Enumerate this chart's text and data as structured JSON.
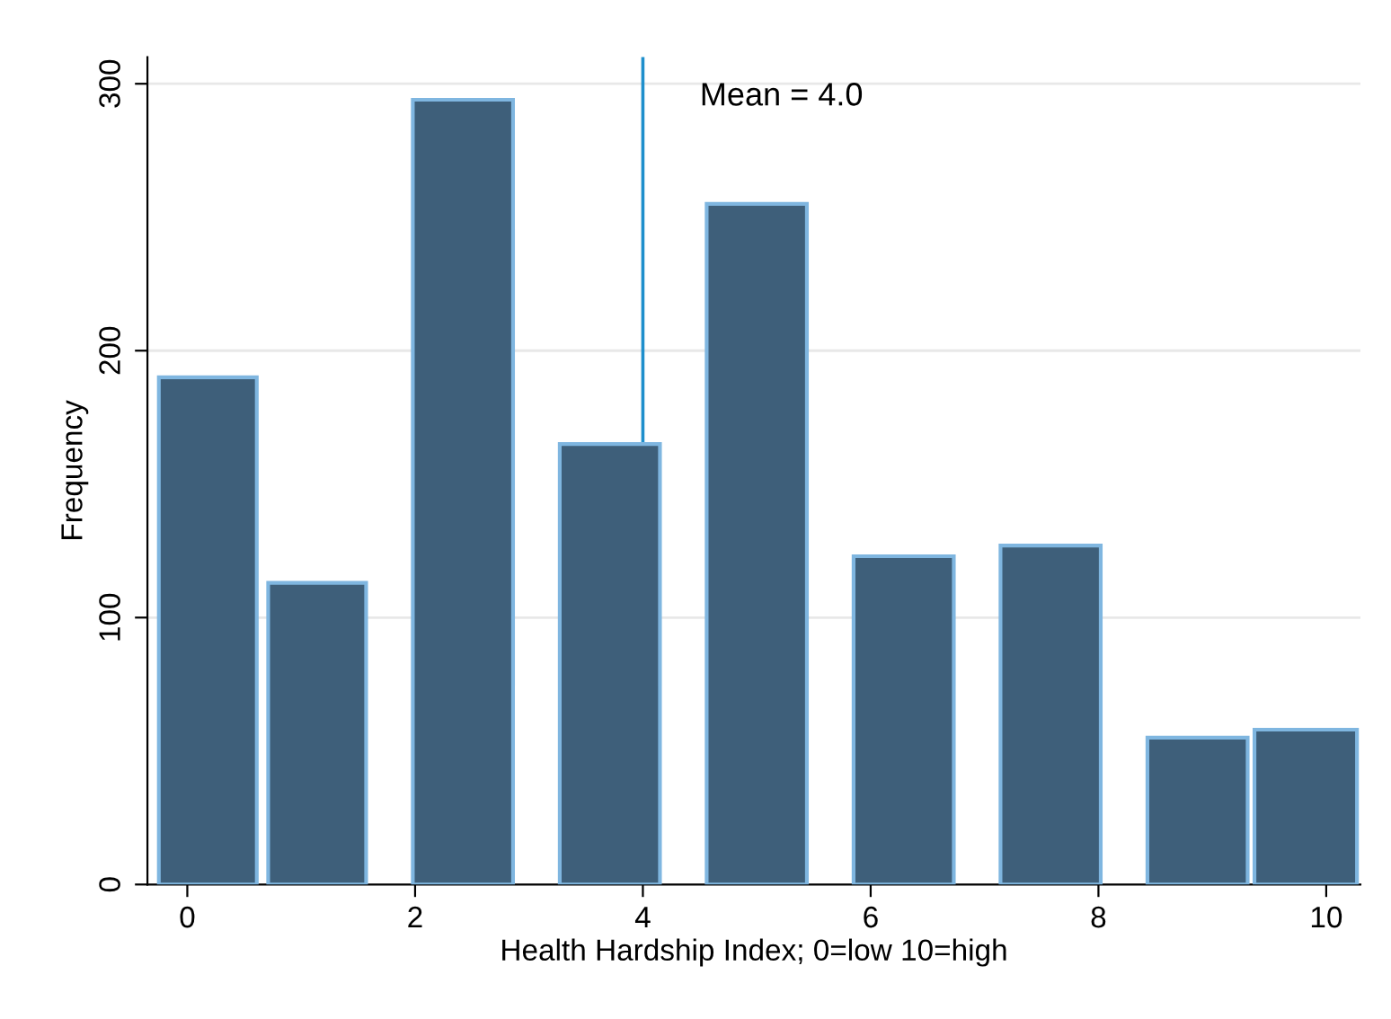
{
  "chart_data": {
    "type": "histogram",
    "xlabel": "Health Hardship Index; 0=low 10=high",
    "ylabel": "Frequency",
    "bins": [
      -0.25,
      0.61,
      0.71,
      1.57,
      1.98,
      2.86,
      3.27,
      4.15,
      4.56,
      5.44,
      5.85,
      6.73,
      7.14,
      8.02,
      8.43,
      9.31,
      9.37,
      10.27
    ],
    "values": [
      190,
      0,
      113,
      0,
      294,
      0,
      165,
      0,
      255,
      0,
      123,
      0,
      127,
      0,
      55,
      0,
      58
    ],
    "color": "#3e5f7a",
    "xlim": [
      -0.35,
      10.3
    ],
    "xticks": [
      0,
      2,
      4,
      6,
      8,
      10
    ],
    "ylim": [
      0,
      310
    ],
    "yticks": [
      0,
      100,
      200,
      300
    ],
    "grid": "y",
    "legend": false,
    "ref_lines": [
      {
        "axis": "x",
        "value": 4,
        "label": "Mean = 4.0",
        "color": "#1f8fcc"
      }
    ]
  }
}
